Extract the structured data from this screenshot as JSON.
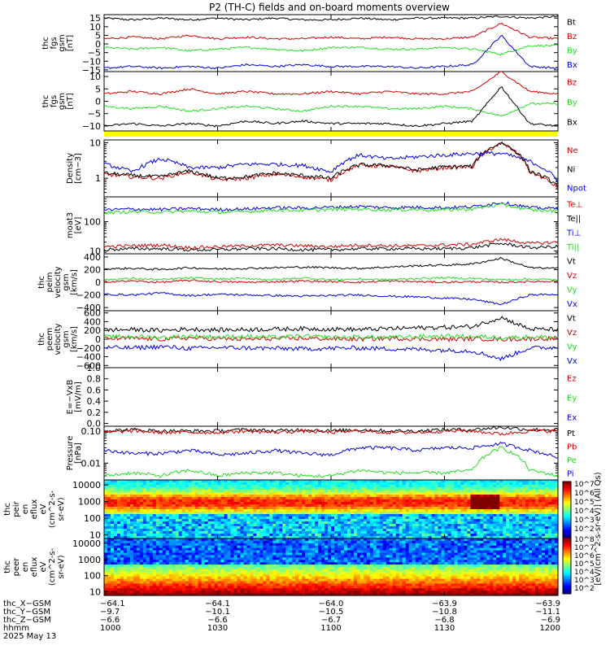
{
  "title": "P2 (TH-C) fields and on-board moments overview",
  "colors": {
    "black": "#000000",
    "red": "#d40000",
    "green": "#22dd22",
    "blue": "#0000dd",
    "yellow": "#ffff00"
  },
  "chart_data": [
    {
      "type": "line",
      "ylabel": [
        "thc",
        "fgs",
        "gsm",
        "[nT]"
      ],
      "yticks": [
        "15",
        "10",
        "5",
        "0",
        "−5",
        "−10",
        "−15"
      ],
      "ylim": [
        -16,
        17
      ],
      "series": [
        {
          "name": "Bt",
          "color": "black",
          "values": [
            15,
            14,
            15,
            14,
            15,
            14,
            15,
            14,
            14,
            15,
            14,
            15,
            15,
            15,
            16,
            15,
            16
          ]
        },
        {
          "name": "Bz",
          "color": "red",
          "values": [
            3,
            4,
            3,
            5,
            3,
            4,
            3,
            3,
            4,
            3,
            4,
            3,
            3,
            4,
            12,
            4,
            3
          ]
        },
        {
          "name": "By",
          "color": "green",
          "values": [
            -2,
            -3,
            -2,
            -4,
            -3,
            -2,
            -3,
            -4,
            -2,
            -2,
            -3,
            -3,
            -2,
            -3,
            -6,
            -1,
            -1
          ]
        },
        {
          "name": "Bx",
          "color": "blue",
          "values": [
            -14,
            -13,
            -14,
            -13,
            -14,
            -12,
            -13,
            -12,
            -13,
            -13,
            -13,
            -14,
            -13,
            -12,
            5,
            -13,
            -14
          ]
        }
      ]
    },
    {
      "type": "line",
      "ylabel": [
        "thc",
        "fgs",
        "gsm",
        "[nT]"
      ],
      "yticks": [
        "10",
        "5",
        "0",
        "−5",
        "−10"
      ],
      "ylim": [
        -12,
        12
      ],
      "series": [
        {
          "name": "Bz",
          "color": "red",
          "values": [
            3,
            4,
            3,
            5,
            3,
            4,
            3,
            3,
            4,
            3,
            4,
            3,
            3,
            4,
            12,
            4,
            3
          ]
        },
        {
          "name": "By",
          "color": "green",
          "values": [
            -2,
            -3,
            -2,
            -4,
            -3,
            -2,
            -3,
            -4,
            -2,
            -2,
            -3,
            -3,
            -2,
            -3,
            -6,
            -1,
            -1
          ]
        },
        {
          "name": "Bx",
          "color": "black",
          "values": [
            -10,
            -9,
            -10,
            -9,
            -10,
            -8,
            -9,
            -8,
            -9,
            -9,
            -9,
            -10,
            -9,
            -8,
            6,
            -9,
            -10
          ]
        }
      ]
    },
    {
      "type": "line",
      "ylabel": [
        "Density",
        "[cm−3]"
      ],
      "yticks": [
        "10",
        "1"
      ],
      "ylog": true,
      "ylim": [
        0.3,
        12
      ],
      "series": [
        {
          "name": "Ne",
          "color": "red",
          "values": [
            1.3,
            1.1,
            1.0,
            1.5,
            0.9,
            1.0,
            1.3,
            1.1,
            0.9,
            2.3,
            2.2,
            1.6,
            2.0,
            2.1,
            9.5,
            1.5,
            0.5
          ]
        },
        {
          "name": "Ni",
          "color": "black",
          "values": [
            1.4,
            1.2,
            1.1,
            1.6,
            1.0,
            1.1,
            1.4,
            1.2,
            1.0,
            2.4,
            2.3,
            1.7,
            2.1,
            2.2,
            10.0,
            1.6,
            0.6
          ]
        },
        {
          "name": "Npot",
          "color": "blue",
          "values": [
            2.5,
            1.5,
            3.5,
            2.0,
            2.0,
            2.5,
            2.5,
            2.3,
            1.5,
            4.5,
            3.5,
            4.0,
            4.5,
            5.0,
            5.0,
            3.0,
            0.8
          ]
        }
      ]
    },
    {
      "type": "line",
      "ylabel": [
        "moat3",
        "[eV]"
      ],
      "yticks": [
        "100",
        "10"
      ],
      "ylog": true,
      "ylim": [
        8,
        700
      ],
      "series": [
        {
          "name": "Te⊥",
          "color": "red",
          "values": [
            14,
            15,
            16,
            13,
            14,
            15,
            16,
            15,
            14,
            16,
            15,
            15,
            16,
            17,
            25,
            18,
            20
          ]
        },
        {
          "name": "Te||",
          "color": "black",
          "values": [
            11,
            12,
            12,
            11,
            11,
            12,
            12,
            11,
            11,
            12,
            12,
            12,
            12,
            13,
            18,
            13,
            14
          ]
        },
        {
          "name": "Ti⊥",
          "color": "blue",
          "values": [
            250,
            270,
            260,
            280,
            260,
            270,
            300,
            290,
            310,
            330,
            300,
            310,
            300,
            320,
            450,
            300,
            280
          ]
        },
        {
          "name": "Ti||",
          "color": "green",
          "values": [
            200,
            220,
            210,
            230,
            210,
            220,
            250,
            240,
            260,
            270,
            250,
            260,
            250,
            270,
            380,
            250,
            230
          ]
        }
      ]
    },
    {
      "type": "line",
      "ylabel": [
        "thc",
        "peim",
        "velocity",
        "gsm",
        "[km/s]"
      ],
      "yticks": [
        "400",
        "200",
        "0",
        "−200",
        "−400"
      ],
      "ylim": [
        -450,
        450
      ],
      "series": [
        {
          "name": "Vt",
          "color": "black",
          "values": [
            210,
            220,
            200,
            230,
            210,
            220,
            230,
            240,
            230,
            220,
            240,
            260,
            270,
            290,
            380,
            230,
            220
          ]
        },
        {
          "name": "Vz",
          "color": "red",
          "values": [
            10,
            20,
            0,
            30,
            10,
            0,
            10,
            20,
            10,
            0,
            20,
            10,
            0,
            10,
            0,
            10,
            20
          ]
        },
        {
          "name": "Vy",
          "color": "green",
          "values": [
            40,
            60,
            40,
            70,
            50,
            60,
            40,
            70,
            40,
            50,
            40,
            60,
            70,
            60,
            40,
            50,
            40
          ]
        },
        {
          "name": "Vx",
          "color": "blue",
          "values": [
            -190,
            -200,
            -170,
            -210,
            -190,
            -200,
            -210,
            -220,
            -210,
            -200,
            -220,
            -230,
            -250,
            -270,
            -350,
            -200,
            -190
          ]
        }
      ]
    },
    {
      "type": "line",
      "ylabel": [
        "thc",
        "peem",
        "velocity",
        "gsm",
        "[km/s]"
      ],
      "yticks": [
        "600",
        "400",
        "200",
        "0",
        "−200",
        "−400",
        "−600"
      ],
      "ylim": [
        -650,
        650
      ],
      "series": [
        {
          "name": "Vt",
          "color": "black",
          "values": [
            210,
            220,
            200,
            230,
            210,
            220,
            230,
            240,
            230,
            220,
            240,
            260,
            270,
            290,
            500,
            230,
            220
          ]
        },
        {
          "name": "Vz",
          "color": "red",
          "values": [
            10,
            20,
            0,
            30,
            10,
            0,
            10,
            20,
            10,
            0,
            20,
            10,
            0,
            10,
            0,
            10,
            20
          ]
        },
        {
          "name": "Vy",
          "color": "green",
          "values": [
            50,
            60,
            40,
            70,
            50,
            60,
            40,
            70,
            40,
            50,
            40,
            60,
            70,
            60,
            40,
            50,
            40
          ]
        },
        {
          "name": "Vx",
          "color": "blue",
          "values": [
            -190,
            -200,
            -170,
            -210,
            -190,
            -200,
            -210,
            -220,
            -210,
            -200,
            -220,
            -230,
            -250,
            -270,
            -450,
            -200,
            -190
          ]
        }
      ]
    },
    {
      "type": "line",
      "ylabel": [
        "E=−VxB",
        "[mV/m]"
      ],
      "yticks": [
        "1.0",
        "0.8",
        "0.6",
        "0.4",
        "0.2",
        "0.0"
      ],
      "ylim": [
        -0.05,
        1.0
      ],
      "series": [
        {
          "name": "Ez",
          "color": "red",
          "values": []
        },
        {
          "name": "Ey",
          "color": "green",
          "values": []
        },
        {
          "name": "Ex",
          "color": "blue",
          "values": []
        }
      ]
    },
    {
      "type": "line",
      "ylabel": [
        "Pressure",
        "[nPa]"
      ],
      "yticks": [
        "0.10",
        "0.01"
      ],
      "ylog": true,
      "ylim": [
        0.003,
        0.14
      ],
      "series": [
        {
          "name": "Pt",
          "color": "black",
          "values": [
            0.1,
            0.11,
            0.1,
            0.1,
            0.1,
            0.11,
            0.1,
            0.11,
            0.1,
            0.11,
            0.1,
            0.1,
            0.11,
            0.11,
            0.13,
            0.11,
            0.11
          ]
        },
        {
          "name": "Pb",
          "color": "red",
          "values": [
            0.09,
            0.1,
            0.09,
            0.09,
            0.09,
            0.1,
            0.09,
            0.1,
            0.09,
            0.1,
            0.09,
            0.09,
            0.1,
            0.1,
            0.08,
            0.1,
            0.1
          ]
        },
        {
          "name": "Pe",
          "color": "green",
          "values": [
            0.004,
            0.005,
            0.004,
            0.006,
            0.004,
            0.005,
            0.005,
            0.004,
            0.004,
            0.006,
            0.005,
            0.005,
            0.005,
            0.006,
            0.03,
            0.006,
            0.004
          ]
        },
        {
          "name": "Pi",
          "color": "blue",
          "values": [
            0.025,
            0.02,
            0.02,
            0.025,
            0.018,
            0.02,
            0.025,
            0.02,
            0.018,
            0.03,
            0.03,
            0.025,
            0.03,
            0.03,
            0.04,
            0.025,
            0.015
          ]
        }
      ]
    },
    {
      "type": "heatmap",
      "ylabel": [
        "thc",
        "peir",
        "en",
        "eflux",
        "eV",
        "(cm^2-s-",
        "sr-eV)"
      ],
      "yticks": [
        "10000",
        "1000",
        "100",
        "10"
      ]
    },
    {
      "type": "heatmap",
      "ylabel": [
        "thc",
        "peer",
        "en",
        "eflux",
        "eV",
        "(cm^2-s-",
        "sr-eV)"
      ],
      "yticks": [
        "10000",
        "1000",
        "100",
        "10"
      ]
    }
  ],
  "colorbar": {
    "label": "[eV/(cm^2-s-sr-eV)] (All Qs)",
    "ticks_top": [
      "10^7",
      "10^6",
      "10^5",
      "10^4",
      "10^3",
      "10^2"
    ],
    "ticks_bottom": [
      "10^8",
      "10^7",
      "10^6",
      "10^5",
      "10^4",
      "10^3",
      "10^2"
    ]
  },
  "xaxis": {
    "row_labels": [
      "thc_X−GSM",
      "thc_Y−GSM",
      "thc_Z−GSM",
      "hhmm",
      "2025 May 13"
    ],
    "ticks": [
      {
        "x": "−64.1",
        "y": "−9.7",
        "z": "−6.6",
        "t": "1000"
      },
      {
        "x": "−64.1",
        "y": "−10.1",
        "z": "−6.6",
        "t": "1030"
      },
      {
        "x": "−64.0",
        "y": "−10.5",
        "z": "−6.7",
        "t": "1100"
      },
      {
        "x": "−63.9",
        "y": "−10.8",
        "z": "−6.8",
        "t": "1130"
      },
      {
        "x": "−63.9",
        "y": "−11.1",
        "z": "−6.9",
        "t": "1200"
      }
    ]
  }
}
